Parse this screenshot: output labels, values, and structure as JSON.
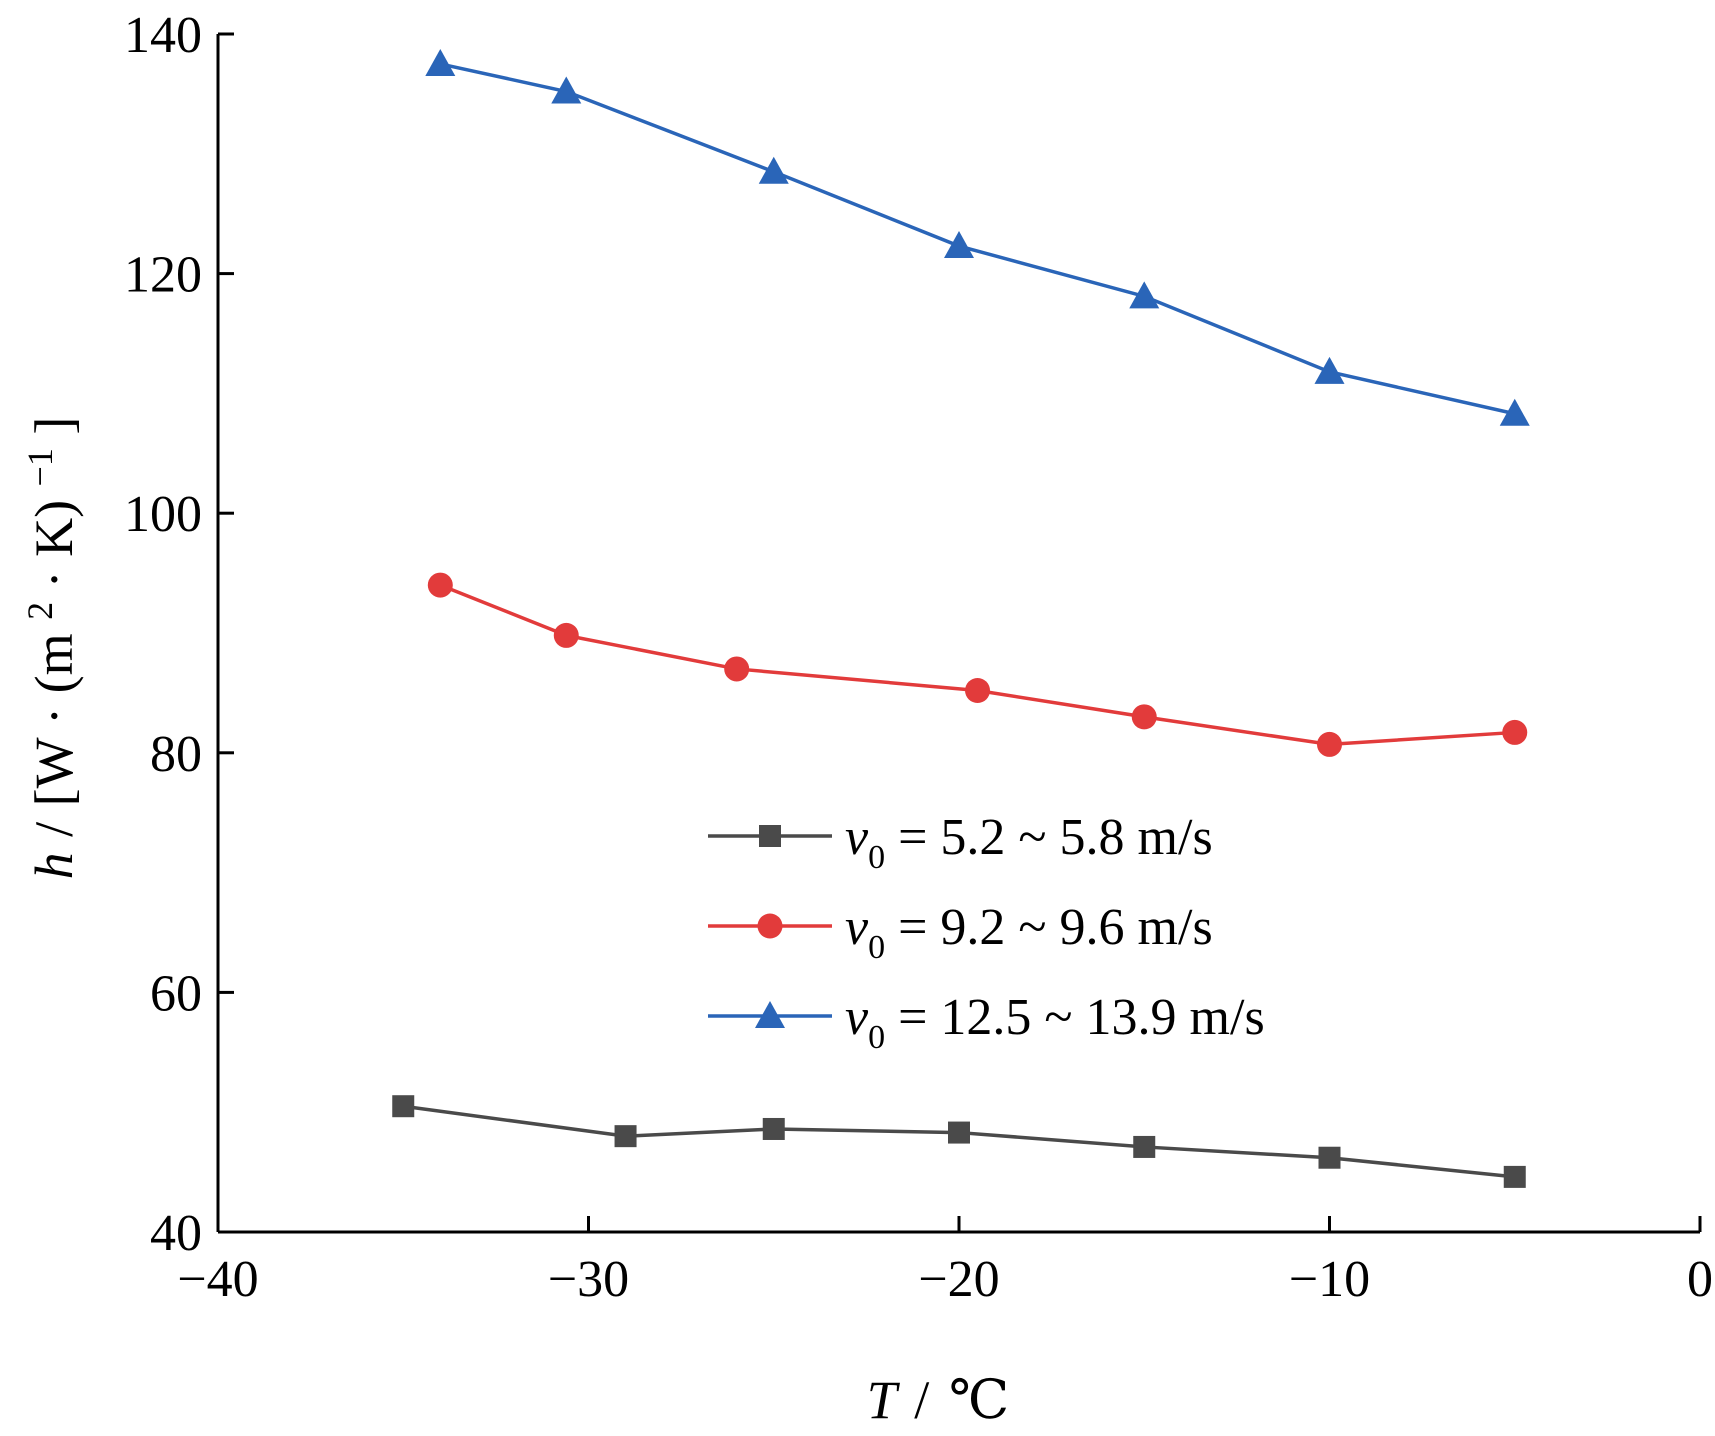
{
  "chart_data": {
    "type": "line",
    "xlim": [
      -40,
      0
    ],
    "ylim": [
      40,
      140
    ],
    "x_ticks": [
      "−40",
      "−30",
      "−20",
      "−10",
      "0"
    ],
    "x_tick_values": [
      -40,
      -30,
      -20,
      -10,
      0
    ],
    "y_ticks": [
      "40",
      "60",
      "80",
      "100",
      "120",
      "140"
    ],
    "y_tick_values": [
      40,
      60,
      80,
      100,
      120,
      140
    ],
    "xlabel": {
      "var": "T",
      "sep": "/",
      "unit": "℃"
    },
    "ylabel": {
      "var": "h",
      "sep": "/",
      "pre": "[W · (m",
      "sup": "2",
      "mid": " · K)",
      "exp": "−1",
      "post": "]"
    },
    "grid": false,
    "legend_position": "center-right",
    "series": [
      {
        "name": "v0 = 5.2 ~ 5.8 m/s",
        "legend": {
          "var": "v",
          "sub": "0",
          "text": " = 5.2 ~ 5.8 m/s"
        },
        "color": "#4a4a4a",
        "marker": "square",
        "x": [
          -35,
          -29,
          -25,
          -20,
          -15,
          -10,
          -5
        ],
        "y": [
          50.5,
          48.0,
          48.6,
          48.3,
          47.1,
          46.2,
          44.6
        ]
      },
      {
        "name": "v0 = 9.2 ~ 9.6 m/s",
        "legend": {
          "var": "v",
          "sub": "0",
          "text": " = 9.2 ~ 9.6 m/s"
        },
        "color": "#e23b3b",
        "marker": "circle",
        "x": [
          -34,
          -30.6,
          -26,
          -19.5,
          -15,
          -10,
          -5
        ],
        "y": [
          94.0,
          89.8,
          87.0,
          85.2,
          83.0,
          80.7,
          81.7
        ]
      },
      {
        "name": "v0 = 12.5 ~ 13.9 m/s",
        "legend": {
          "var": "v",
          "sub": "0",
          "text": " = 12.5 ~ 13.9 m/s"
        },
        "color": "#2a65b8",
        "marker": "triangle",
        "x": [
          -34,
          -30.6,
          -25,
          -20,
          -15,
          -10,
          -5
        ],
        "y": [
          137.5,
          135.2,
          128.5,
          122.3,
          118.1,
          111.8,
          108.3
        ]
      }
    ]
  }
}
